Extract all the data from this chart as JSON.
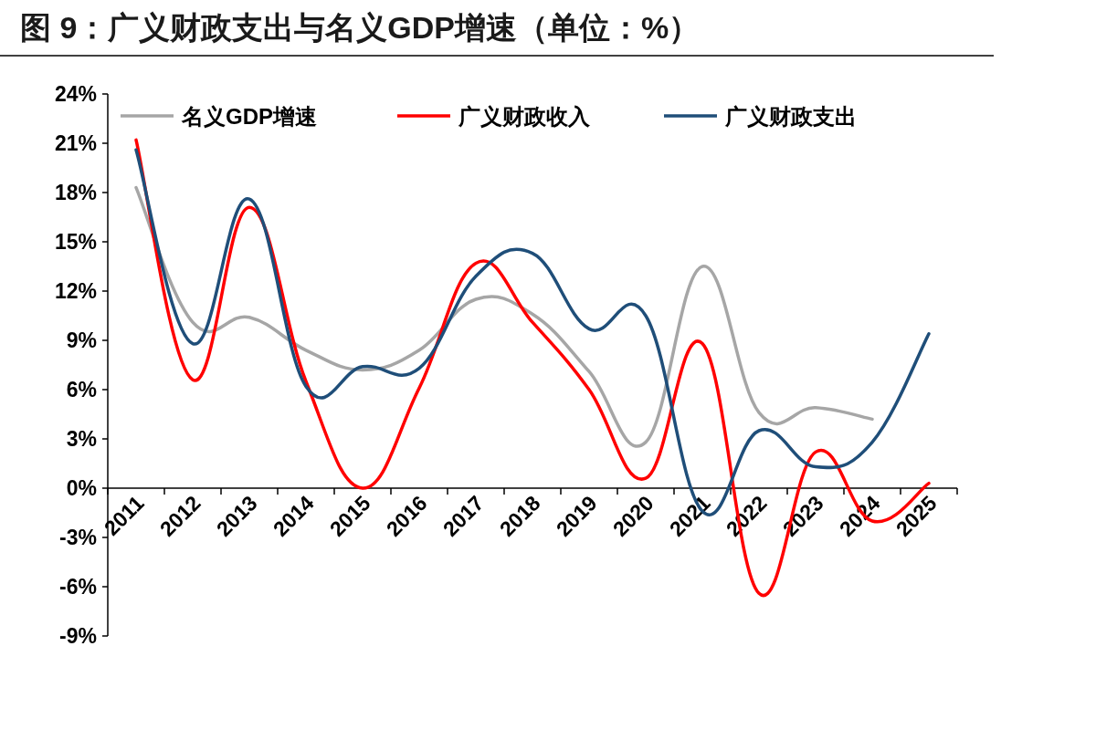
{
  "chart_data": {
    "type": "line",
    "title": "图 9：广义财政支出与名义GDP增速（单位：%）",
    "categories": [
      "2011",
      "2012",
      "2013",
      "2014",
      "2015",
      "2016",
      "2017",
      "2018",
      "2019",
      "2020",
      "2021",
      "2022",
      "2023",
      "2024",
      "2025"
    ],
    "series": [
      {
        "name": "名义GDP增速",
        "color": "#a6a6a6",
        "values": [
          18.3,
          10.1,
          10.4,
          8.4,
          7.2,
          8.4,
          11.5,
          10.6,
          7.1,
          2.8,
          13.5,
          4.6,
          4.9,
          4.2,
          null
        ]
      },
      {
        "name": "广义财政收入",
        "color": "#ff0000",
        "values": [
          21.2,
          6.6,
          17.1,
          6.5,
          0.0,
          6.1,
          13.7,
          10.1,
          6.0,
          0.6,
          8.8,
          -6.4,
          2.2,
          -2.0,
          0.3
        ]
      },
      {
        "name": "广义财政支出",
        "color": "#1f4e79",
        "values": [
          20.6,
          8.8,
          17.6,
          6.2,
          7.4,
          7.3,
          12.9,
          14.3,
          9.7,
          10.5,
          -1.4,
          3.5,
          1.3,
          2.8,
          9.4
        ]
      }
    ],
    "ylim": [
      -9,
      24
    ],
    "yticks": [
      {
        "value": -9,
        "label": "-9%"
      },
      {
        "value": -6,
        "label": "-6%"
      },
      {
        "value": -3,
        "label": "-3%"
      },
      {
        "value": 0,
        "label": "0%"
      },
      {
        "value": 3,
        "label": "3%"
      },
      {
        "value": 6,
        "label": "6%"
      },
      {
        "value": 9,
        "label": "9%"
      },
      {
        "value": 12,
        "label": "12%"
      },
      {
        "value": 15,
        "label": "15%"
      },
      {
        "value": 18,
        "label": "18%"
      },
      {
        "value": 21,
        "label": "21%"
      },
      {
        "value": 24,
        "label": "24%"
      }
    ],
    "legend": "top"
  }
}
